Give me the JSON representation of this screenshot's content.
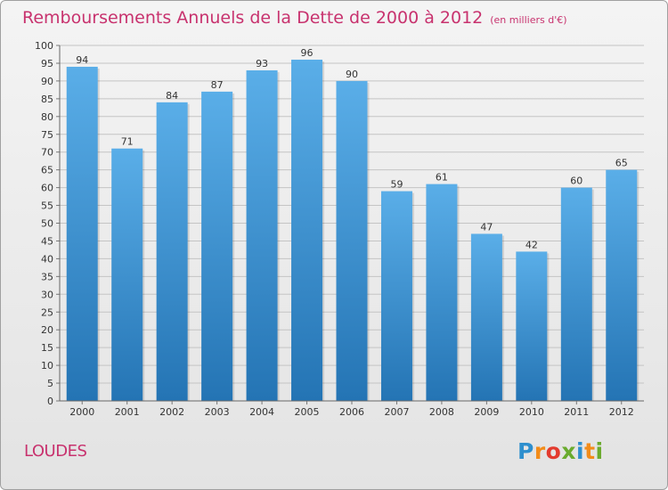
{
  "title": "Remboursements Annuels de la Dette de 2000 à 2012",
  "subtitle": "(en milliers d'€)",
  "commune": "LOUDES",
  "logo": {
    "text": "Proxiti",
    "letters": [
      {
        "ch": "P",
        "color": "#2e8fce"
      },
      {
        "ch": "r",
        "color": "#f28c1a"
      },
      {
        "ch": "o",
        "color": "#e33b2e"
      },
      {
        "ch": "x",
        "color": "#6aab2e"
      },
      {
        "ch": "i",
        "color": "#2e8fce"
      },
      {
        "ch": "t",
        "color": "#f28c1a"
      },
      {
        "ch": "i",
        "color": "#6aab2e"
      }
    ]
  },
  "colors": {
    "title": "#c8326e",
    "bar_top": "#5aaee8",
    "bar_bottom": "#2474b4",
    "grid": "#c4c4c4"
  },
  "chart_data": {
    "type": "bar",
    "categories": [
      "2000",
      "2001",
      "2002",
      "2003",
      "2004",
      "2005",
      "2006",
      "2007",
      "2008",
      "2009",
      "2010",
      "2011",
      "2012"
    ],
    "values": [
      94,
      71,
      84,
      87,
      93,
      96,
      90,
      59,
      61,
      47,
      42,
      60,
      65
    ],
    "ylim": [
      0,
      100
    ],
    "ytick_step": 5,
    "grid": true,
    "data_labels": true,
    "xlabel": "",
    "ylabel": ""
  }
}
